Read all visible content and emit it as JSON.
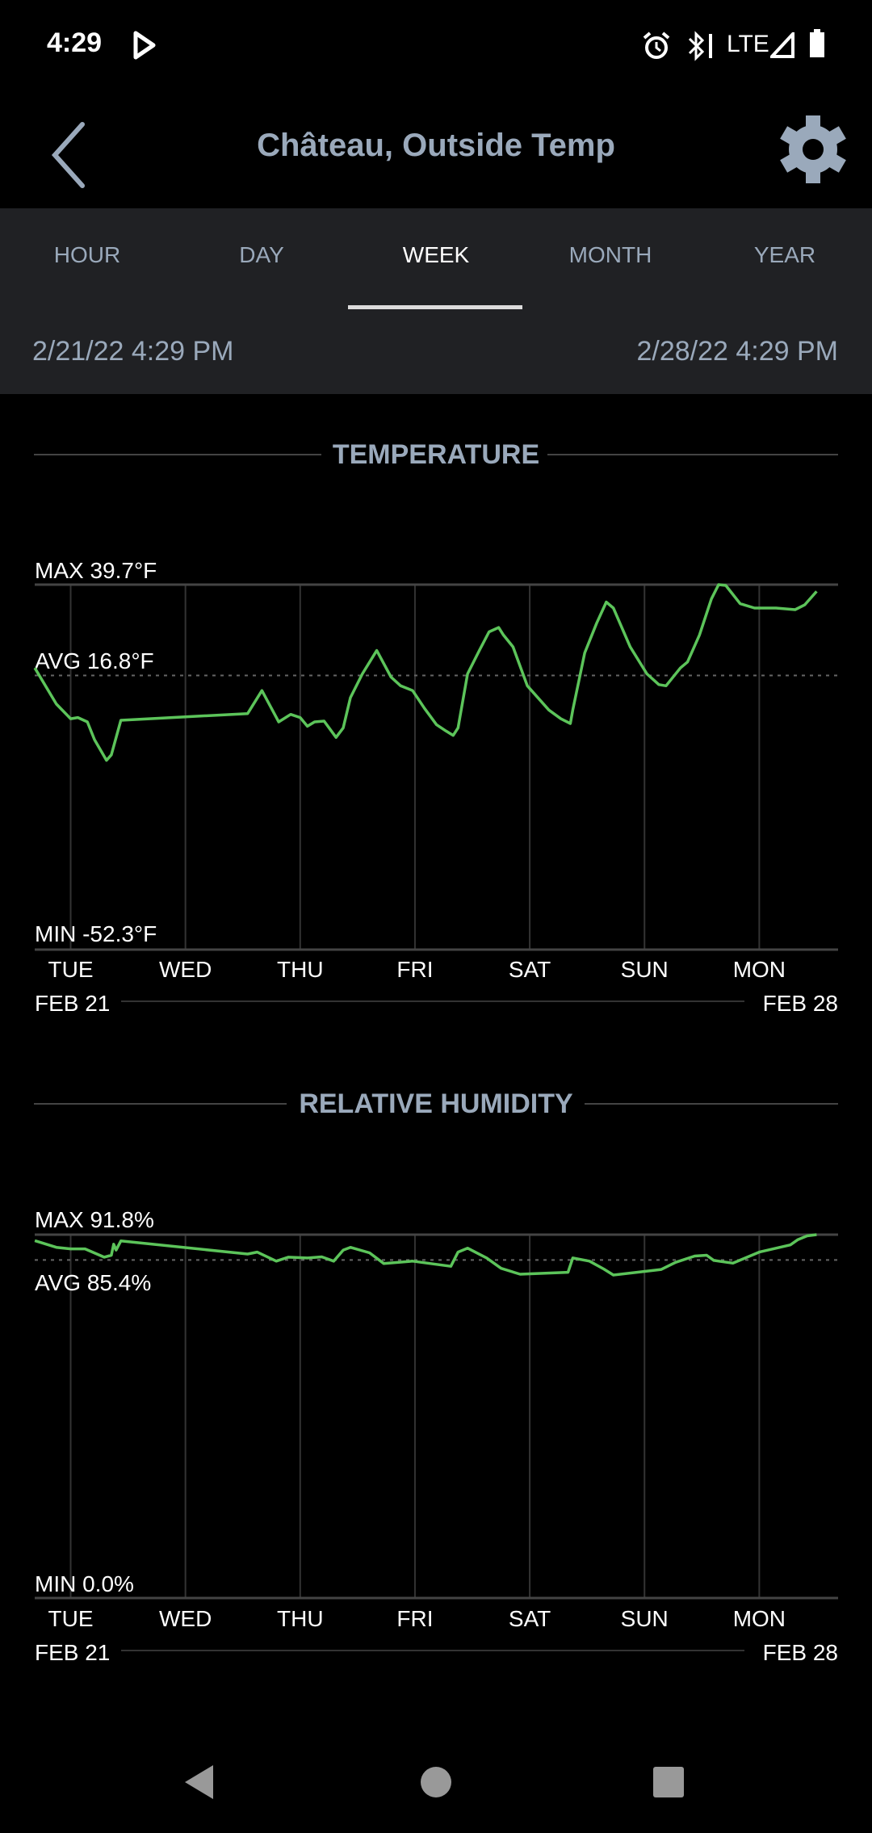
{
  "status_bar": {
    "time": "4:29",
    "network": "LTE",
    "icons": [
      "play-icon",
      "alarm-icon",
      "bluetooth-icon",
      "signal-icon",
      "battery-icon"
    ]
  },
  "header": {
    "title": "Château, Outside Temp",
    "back_icon": "chevron-left-icon",
    "settings_icon": "gear-icon"
  },
  "tabs": [
    {
      "label": "HOUR",
      "active": false
    },
    {
      "label": "DAY",
      "active": false
    },
    {
      "label": "WEEK",
      "active": true
    },
    {
      "label": "MONTH",
      "active": false
    },
    {
      "label": "YEAR",
      "active": false
    }
  ],
  "range": {
    "start": "2/21/22 4:29 PM",
    "end": "2/28/22 4:29 PM"
  },
  "colors": {
    "accent": "#5cc45a",
    "header_text": "#9aa9bb",
    "tab_bar": "#202124",
    "grid": "#333333"
  },
  "chart_data": [
    {
      "type": "line",
      "title": "TEMPERATURE",
      "max_label": "MAX 39.7°F",
      "avg_label": "AVG 16.8°F",
      "min_label": "MIN -52.3°F",
      "ylim": [
        -52.3,
        39.7
      ],
      "avg": 16.8,
      "xlim": [
        "2022-02-21 16:29",
        "2022-02-28 16:29"
      ],
      "x_ticks": [
        {
          "label": "TUE",
          "at": "2022-02-22 00:00"
        },
        {
          "label": "WED",
          "at": "2022-02-23 00:00"
        },
        {
          "label": "THU",
          "at": "2022-02-24 00:00"
        },
        {
          "label": "FRI",
          "at": "2022-02-25 00:00"
        },
        {
          "label": "SAT",
          "at": "2022-02-26 00:00"
        },
        {
          "label": "SUN",
          "at": "2022-02-27 00:00"
        },
        {
          "label": "MON",
          "at": "2022-02-28 00:00"
        }
      ],
      "start_label": "FEB 21",
      "end_label": "FEB 28",
      "points": [
        [
          "2022-02-21 16:30",
          18.7
        ],
        [
          "2022-02-21 21:00",
          9.6
        ],
        [
          "2022-02-22 00:00",
          5.9
        ],
        [
          "2022-02-22 01:30",
          6.2
        ],
        [
          "2022-02-22 03:30",
          5.1
        ],
        [
          "2022-02-22 05:00",
          0.6
        ],
        [
          "2022-02-22 07:30",
          -4.6
        ],
        [
          "2022-02-22 08:30",
          -3.2
        ],
        [
          "2022-02-22 10:30",
          5.5
        ],
        [
          "2022-02-23 13:00",
          7.2
        ],
        [
          "2022-02-23 16:00",
          13.0
        ],
        [
          "2022-02-23 19:30",
          5.1
        ],
        [
          "2022-02-23 22:00",
          7.0
        ],
        [
          "2022-02-24 00:00",
          6.2
        ],
        [
          "2022-02-24 01:30",
          4.0
        ],
        [
          "2022-02-24 03:00",
          5.1
        ],
        [
          "2022-02-24 05:00",
          5.3
        ],
        [
          "2022-02-24 07:30",
          1.2
        ],
        [
          "2022-02-24 09:00",
          3.6
        ],
        [
          "2022-02-24 10:30",
          11.2
        ],
        [
          "2022-02-24 13:00",
          17.2
        ],
        [
          "2022-02-24 16:00",
          23.1
        ],
        [
          "2022-02-24 19:00",
          16.4
        ],
        [
          "2022-02-24 21:00",
          14.2
        ],
        [
          "2022-02-24 23:30",
          13.0
        ],
        [
          "2022-02-25 02:00",
          8.5
        ],
        [
          "2022-02-25 04:30",
          4.4
        ],
        [
          "2022-02-25 06:30",
          2.8
        ],
        [
          "2022-02-25 08:00",
          1.7
        ],
        [
          "2022-02-25 09:00",
          3.6
        ],
        [
          "2022-02-25 11:00",
          17.2
        ],
        [
          "2022-02-25 13:30",
          23.2
        ],
        [
          "2022-02-25 15:30",
          27.8
        ],
        [
          "2022-02-25 17:30",
          28.9
        ],
        [
          "2022-02-25 18:30",
          27.0
        ],
        [
          "2022-02-25 20:30",
          24.0
        ],
        [
          "2022-02-25 23:30",
          14.2
        ],
        [
          "2022-02-26 04:00",
          8.1
        ],
        [
          "2022-02-26 06:30",
          5.9
        ],
        [
          "2022-02-26 08:30",
          4.7
        ],
        [
          "2022-02-26 09:00",
          8.1
        ],
        [
          "2022-02-26 11:30",
          22.5
        ],
        [
          "2022-02-26 14:00",
          30.0
        ],
        [
          "2022-02-26 16:00",
          35.3
        ],
        [
          "2022-02-26 17:30",
          33.8
        ],
        [
          "2022-02-26 21:00",
          24.0
        ],
        [
          "2022-02-27 00:30",
          17.2
        ],
        [
          "2022-02-27 03:00",
          14.5
        ],
        [
          "2022-02-27 04:30",
          14.2
        ],
        [
          "2022-02-27 07:30",
          18.7
        ],
        [
          "2022-02-27 09:00",
          20.2
        ],
        [
          "2022-02-27 11:30",
          27.0
        ],
        [
          "2022-02-27 14:00",
          36.1
        ],
        [
          "2022-02-27 15:30",
          39.7
        ],
        [
          "2022-02-27 17:00",
          39.5
        ],
        [
          "2022-02-27 20:00",
          34.9
        ],
        [
          "2022-02-27 23:00",
          33.8
        ],
        [
          "2022-02-28 03:30",
          33.8
        ],
        [
          "2022-02-28 07:30",
          33.4
        ],
        [
          "2022-02-28 09:30",
          34.6
        ],
        [
          "2022-02-28 12:00",
          38.0
        ]
      ]
    },
    {
      "type": "line",
      "title": "RELATIVE HUMIDITY",
      "max_label": "MAX 91.8%",
      "avg_label": "AVG 85.4%",
      "min_label": "MIN 0.0%",
      "ylim": [
        0.0,
        91.8
      ],
      "avg": 85.4,
      "xlim": [
        "2022-02-21 16:29",
        "2022-02-28 16:29"
      ],
      "x_ticks": [
        {
          "label": "TUE",
          "at": "2022-02-22 00:00"
        },
        {
          "label": "WED",
          "at": "2022-02-23 00:00"
        },
        {
          "label": "THU",
          "at": "2022-02-24 00:00"
        },
        {
          "label": "FRI",
          "at": "2022-02-25 00:00"
        },
        {
          "label": "SAT",
          "at": "2022-02-26 00:00"
        },
        {
          "label": "SUN",
          "at": "2022-02-27 00:00"
        },
        {
          "label": "MON",
          "at": "2022-02-28 00:00"
        }
      ],
      "start_label": "FEB 21",
      "end_label": "FEB 28",
      "points": [
        [
          "2022-02-21 16:30",
          90.3
        ],
        [
          "2022-02-21 21:00",
          88.6
        ],
        [
          "2022-02-22 00:00",
          88.2
        ],
        [
          "2022-02-22 03:00",
          88.2
        ],
        [
          "2022-02-22 07:00",
          86.1
        ],
        [
          "2022-02-22 08:30",
          86.6
        ],
        [
          "2022-02-22 09:00",
          89.4
        ],
        [
          "2022-02-22 09:30",
          87.9
        ],
        [
          "2022-02-22 10:30",
          90.2
        ],
        [
          "2022-02-23 13:00",
          86.9
        ],
        [
          "2022-02-23 15:00",
          87.4
        ],
        [
          "2022-02-23 19:00",
          85.1
        ],
        [
          "2022-02-23 21:30",
          86.1
        ],
        [
          "2022-02-24 01:30",
          85.9
        ],
        [
          "2022-02-24 04:30",
          86.2
        ],
        [
          "2022-02-24 07:00",
          85.1
        ],
        [
          "2022-02-24 09:00",
          87.9
        ],
        [
          "2022-02-24 10:30",
          88.6
        ],
        [
          "2022-02-24 14:30",
          87.2
        ],
        [
          "2022-02-24 17:30",
          84.5
        ],
        [
          "2022-02-24 23:30",
          85.1
        ],
        [
          "2022-02-25 07:30",
          83.8
        ],
        [
          "2022-02-25 09:00",
          87.4
        ],
        [
          "2022-02-25 11:00",
          88.4
        ],
        [
          "2022-02-25 15:00",
          85.9
        ],
        [
          "2022-02-25 18:00",
          83.3
        ],
        [
          "2022-02-25 22:00",
          81.8
        ],
        [
          "2022-02-26 08:00",
          82.3
        ],
        [
          "2022-02-26 09:00",
          85.9
        ],
        [
          "2022-02-26 12:30",
          85.1
        ],
        [
          "2022-02-26 15:30",
          83.1
        ],
        [
          "2022-02-26 17:30",
          81.6
        ],
        [
          "2022-02-27 03:30",
          83.0
        ],
        [
          "2022-02-27 06:30",
          84.8
        ],
        [
          "2022-02-27 10:30",
          86.4
        ],
        [
          "2022-02-27 13:00",
          86.6
        ],
        [
          "2022-02-27 14:30",
          85.3
        ],
        [
          "2022-02-27 18:30",
          84.6
        ],
        [
          "2022-02-28 00:00",
          87.4
        ],
        [
          "2022-02-28 06:30",
          89.2
        ],
        [
          "2022-02-28 08:00",
          90.5
        ],
        [
          "2022-02-28 10:00",
          91.5
        ],
        [
          "2022-02-28 12:00",
          91.8
        ]
      ]
    }
  ],
  "nav_bar": {
    "icons": [
      "nav-back-icon",
      "nav-home-icon",
      "nav-recents-icon"
    ]
  }
}
